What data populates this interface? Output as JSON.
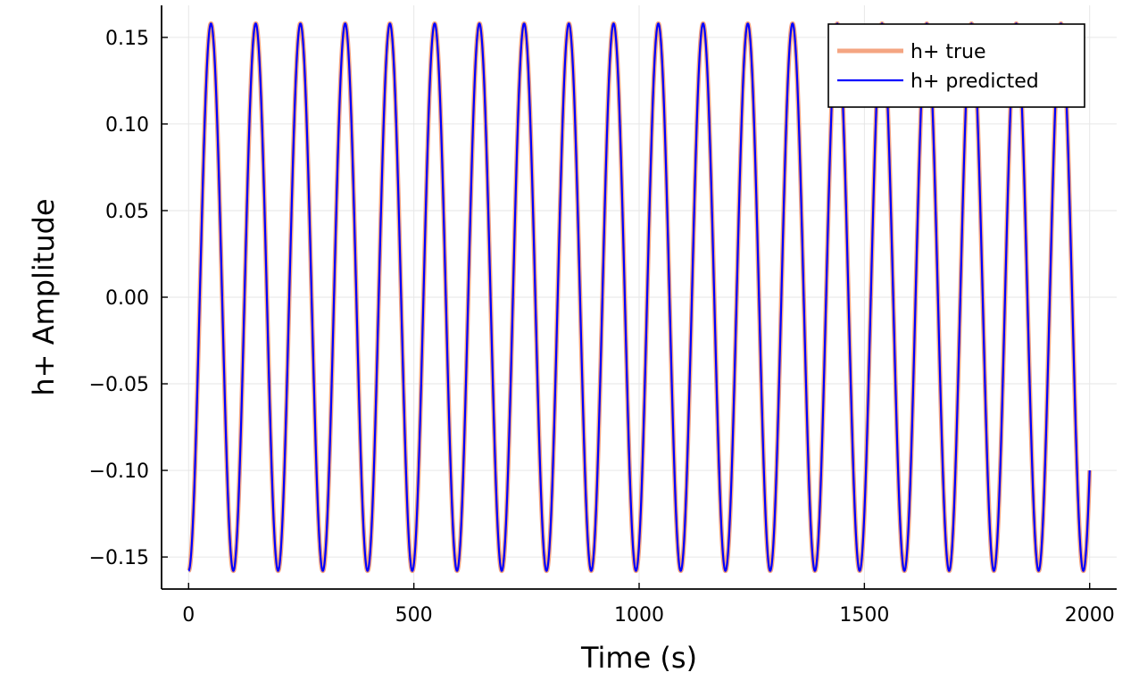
{
  "chart_data": {
    "type": "line",
    "title": "",
    "xlabel": "Time (s)",
    "ylabel": "h+ Amplitude",
    "xlim": [
      -60,
      2060
    ],
    "ylim": [
      -0.1685,
      0.1685
    ],
    "xticks": [
      0,
      500,
      1000,
      1500,
      2000
    ],
    "xtick_labels": [
      "0",
      "500",
      "1000",
      "1500",
      "2000"
    ],
    "yticks": [
      -0.15,
      -0.1,
      -0.05,
      0.0,
      0.05,
      0.1,
      0.15
    ],
    "ytick_labels": [
      "−0.15",
      "−0.10",
      "−0.05",
      "0.00",
      "0.05",
      "0.10",
      "0.15"
    ],
    "grid": true,
    "legend_position": "top-right",
    "series": [
      {
        "name": "h+ true",
        "color": "#f4a582",
        "line_width": "thick",
        "x_start": 0,
        "x_end": 2000,
        "amplitude": 0.158,
        "period": 99.3,
        "phase_at_start": "minimum",
        "value_at_end": -0.107
      },
      {
        "name": "h+ predicted",
        "color": "#0000ff",
        "line_width": "thin",
        "x_start": 0,
        "x_end": 2000,
        "amplitude": 0.158,
        "period": 99.3,
        "phase_at_start": "minimum",
        "value_at_end": -0.107
      }
    ]
  }
}
